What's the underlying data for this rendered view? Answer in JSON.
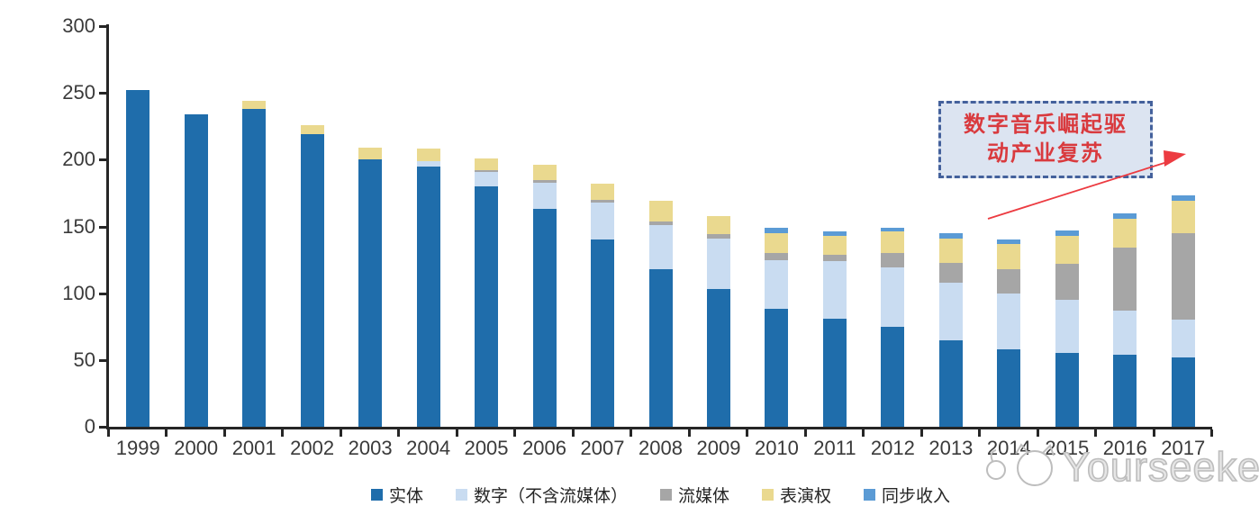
{
  "chart_data": {
    "type": "bar",
    "stacked": true,
    "title": "",
    "xlabel": "",
    "ylabel": "",
    "categories": [
      "1999",
      "2000",
      "2001",
      "2002",
      "2003",
      "2004",
      "2005",
      "2006",
      "2007",
      "2008",
      "2009",
      "2010",
      "2011",
      "2012",
      "2013",
      "2014",
      "2015",
      "2016",
      "2017"
    ],
    "series": [
      {
        "name": "实体",
        "color": "#1f6dab",
        "values": [
          252,
          234,
          238,
          219,
          200,
          195,
          180,
          163,
          140,
          118,
          103,
          88,
          81,
          75,
          65,
          58,
          55,
          54,
          52
        ]
      },
      {
        "name": "数字（不含流媒体）",
        "color": "#c9dcf1",
        "values": [
          0,
          0,
          0,
          0,
          0,
          4,
          11,
          20,
          28,
          33,
          38,
          37,
          43,
          44,
          43,
          42,
          40,
          33,
          28
        ]
      },
      {
        "name": "流媒体",
        "color": "#a6a6a6",
        "values": [
          0,
          0,
          0,
          0,
          0,
          0,
          1,
          2,
          2,
          3,
          3,
          5,
          5,
          11,
          15,
          18,
          27,
          47,
          65
        ]
      },
      {
        "name": "表演权",
        "color": "#ead98f",
        "values": [
          0,
          0,
          6,
          7,
          9,
          9,
          9,
          11,
          12,
          15,
          14,
          15,
          14,
          16,
          18,
          19,
          21,
          22,
          24
        ]
      },
      {
        "name": "同步收入",
        "color": "#5b9bd5",
        "values": [
          0,
          0,
          0,
          0,
          0,
          0,
          0,
          0,
          0,
          0,
          0,
          4,
          3,
          3,
          4,
          3,
          4,
          4,
          4
        ]
      }
    ],
    "ylim": [
      0,
      300
    ],
    "yticks": [
      0,
      50,
      100,
      150,
      200,
      250,
      300
    ],
    "grid": false,
    "legend_position": "bottom"
  },
  "annotation": {
    "line1": "数字音乐崛起驱",
    "line2": "动产业复苏",
    "box_fill": "#dce4f1",
    "box_border": "#44619c",
    "text_color": "#d93a3e",
    "arrow_color": "#ec3b41"
  },
  "watermark": {
    "text": "Yourseeker",
    "logo_icon": "cat-logo",
    "color": "#bdbdbd"
  }
}
